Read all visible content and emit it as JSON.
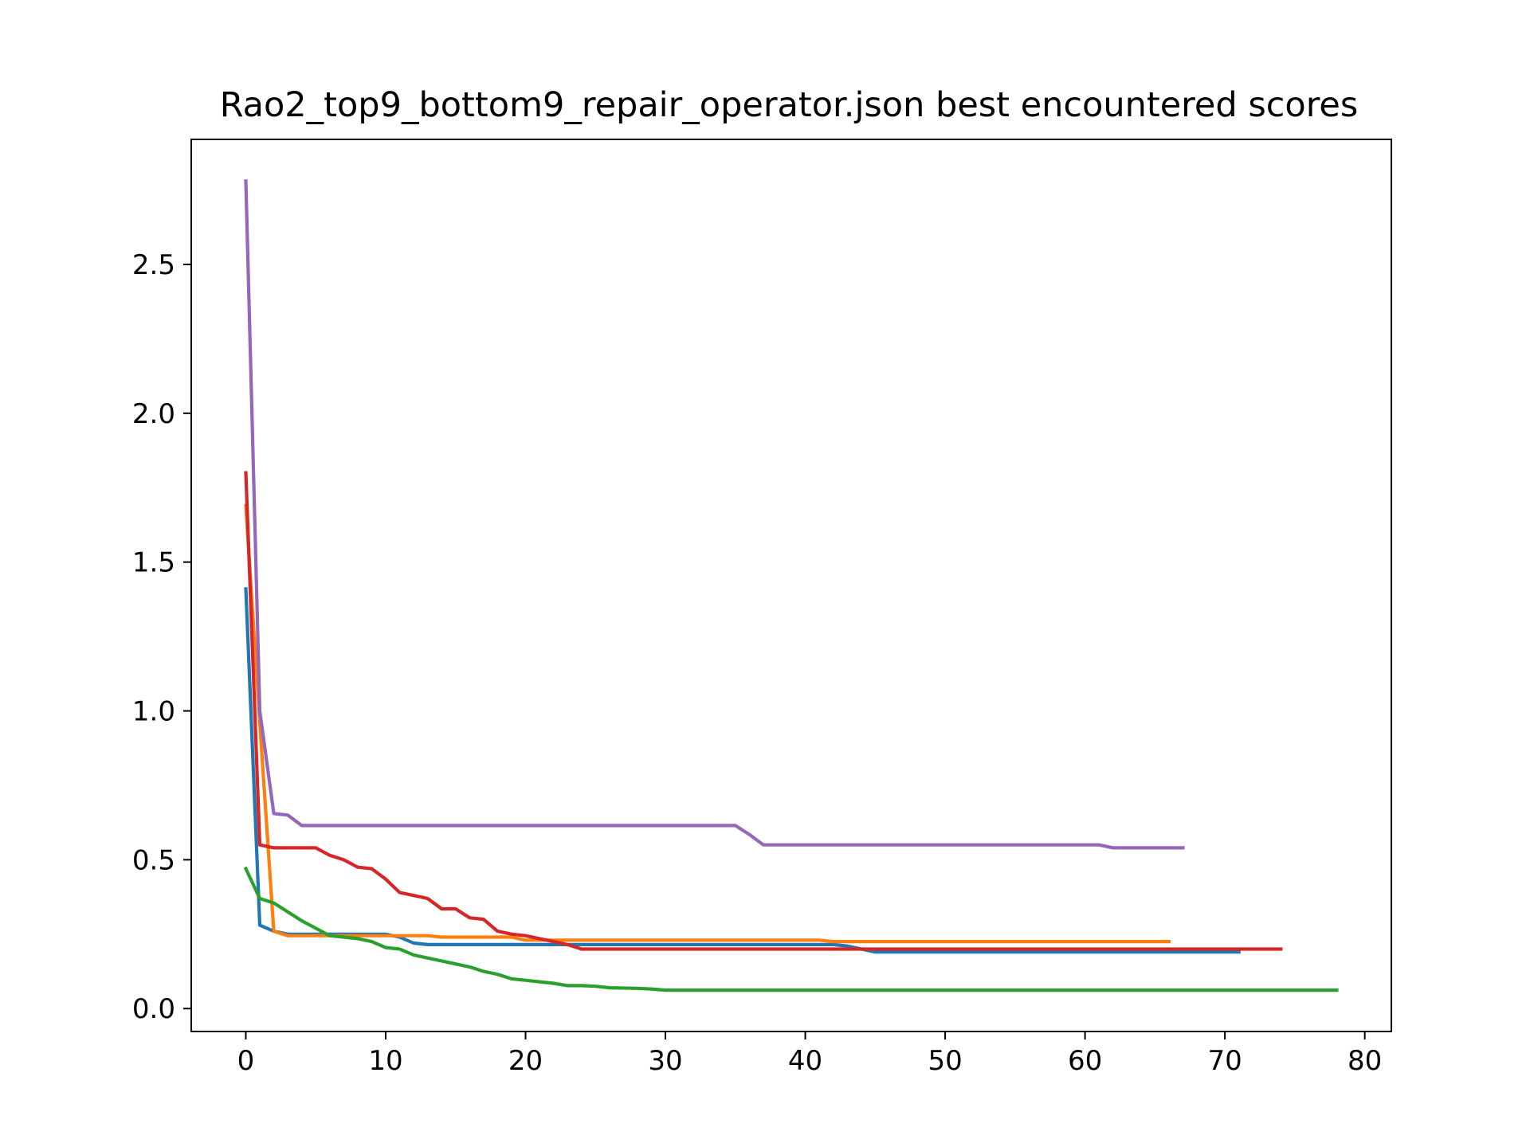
{
  "chart_data": {
    "type": "line",
    "title": "Rao2_top9_bottom9_repair_operator.json best encountered scores",
    "xlabel": "",
    "ylabel": "",
    "xlim": [
      -3.9,
      81.9
    ],
    "ylim": [
      -0.077,
      2.92
    ],
    "xticks": [
      0,
      10,
      20,
      30,
      40,
      50,
      60,
      70,
      80
    ],
    "yticks": [
      0.0,
      0.5,
      1.0,
      1.5,
      2.0,
      2.5
    ],
    "xtick_labels": [
      "0",
      "10",
      "20",
      "30",
      "40",
      "50",
      "60",
      "70",
      "80"
    ],
    "ytick_labels": [
      "0.0",
      "0.5",
      "1.0",
      "1.5",
      "2.0",
      "2.5"
    ],
    "grid": false,
    "legend": "none",
    "series": [
      {
        "color": "#1f77b4",
        "points": [
          [
            0,
            1.41
          ],
          [
            1,
            0.28
          ],
          [
            2,
            0.26
          ],
          [
            3,
            0.25
          ],
          [
            10,
            0.25
          ],
          [
            11,
            0.24
          ],
          [
            12,
            0.22
          ],
          [
            13,
            0.215
          ],
          [
            42,
            0.215
          ],
          [
            43,
            0.21
          ],
          [
            45,
            0.19
          ],
          [
            71,
            0.19
          ]
        ]
      },
      {
        "color": "#ff7f0e",
        "points": [
          [
            0,
            1.69
          ],
          [
            1,
            0.96
          ],
          [
            2,
            0.26
          ],
          [
            3,
            0.245
          ],
          [
            13,
            0.245
          ],
          [
            14,
            0.24
          ],
          [
            19,
            0.24
          ],
          [
            20,
            0.23
          ],
          [
            41,
            0.23
          ],
          [
            42,
            0.225
          ],
          [
            66,
            0.225
          ]
        ]
      },
      {
        "color": "#2ca02c",
        "points": [
          [
            0,
            0.47
          ],
          [
            1,
            0.37
          ],
          [
            2,
            0.355
          ],
          [
            3,
            0.325
          ],
          [
            4,
            0.295
          ],
          [
            5,
            0.27
          ],
          [
            6,
            0.245
          ],
          [
            7,
            0.24
          ],
          [
            8,
            0.235
          ],
          [
            9,
            0.225
          ],
          [
            10,
            0.205
          ],
          [
            11,
            0.2
          ],
          [
            12,
            0.18
          ],
          [
            13,
            0.17
          ],
          [
            14,
            0.16
          ],
          [
            15,
            0.15
          ],
          [
            16,
            0.14
          ],
          [
            17,
            0.125
          ],
          [
            18,
            0.115
          ],
          [
            19,
            0.1
          ],
          [
            20,
            0.095
          ],
          [
            21,
            0.09
          ],
          [
            22,
            0.085
          ],
          [
            23,
            0.077
          ],
          [
            24,
            0.077
          ],
          [
            25,
            0.075
          ],
          [
            26,
            0.07
          ],
          [
            28,
            0.068
          ],
          [
            29,
            0.066
          ],
          [
            30,
            0.062
          ],
          [
            78,
            0.062
          ]
        ]
      },
      {
        "color": "#d62728",
        "points": [
          [
            0,
            1.8
          ],
          [
            1,
            0.55
          ],
          [
            2,
            0.54
          ],
          [
            5,
            0.54
          ],
          [
            6,
            0.515
          ],
          [
            7,
            0.5
          ],
          [
            8,
            0.475
          ],
          [
            9,
            0.47
          ],
          [
            10,
            0.435
          ],
          [
            11,
            0.39
          ],
          [
            12,
            0.38
          ],
          [
            13,
            0.37
          ],
          [
            14,
            0.335
          ],
          [
            15,
            0.335
          ],
          [
            16,
            0.305
          ],
          [
            17,
            0.3
          ],
          [
            18,
            0.26
          ],
          [
            19,
            0.25
          ],
          [
            20,
            0.245
          ],
          [
            21,
            0.235
          ],
          [
            22,
            0.225
          ],
          [
            23,
            0.215
          ],
          [
            24,
            0.2
          ],
          [
            74,
            0.2
          ]
        ]
      },
      {
        "color": "#9467bd",
        "points": [
          [
            0,
            2.78
          ],
          [
            1,
            1.0
          ],
          [
            2,
            0.655
          ],
          [
            3,
            0.65
          ],
          [
            4,
            0.615
          ],
          [
            35,
            0.615
          ],
          [
            36,
            0.585
          ],
          [
            37,
            0.55
          ],
          [
            61,
            0.55
          ],
          [
            62,
            0.54
          ],
          [
            67,
            0.54
          ]
        ]
      }
    ]
  }
}
